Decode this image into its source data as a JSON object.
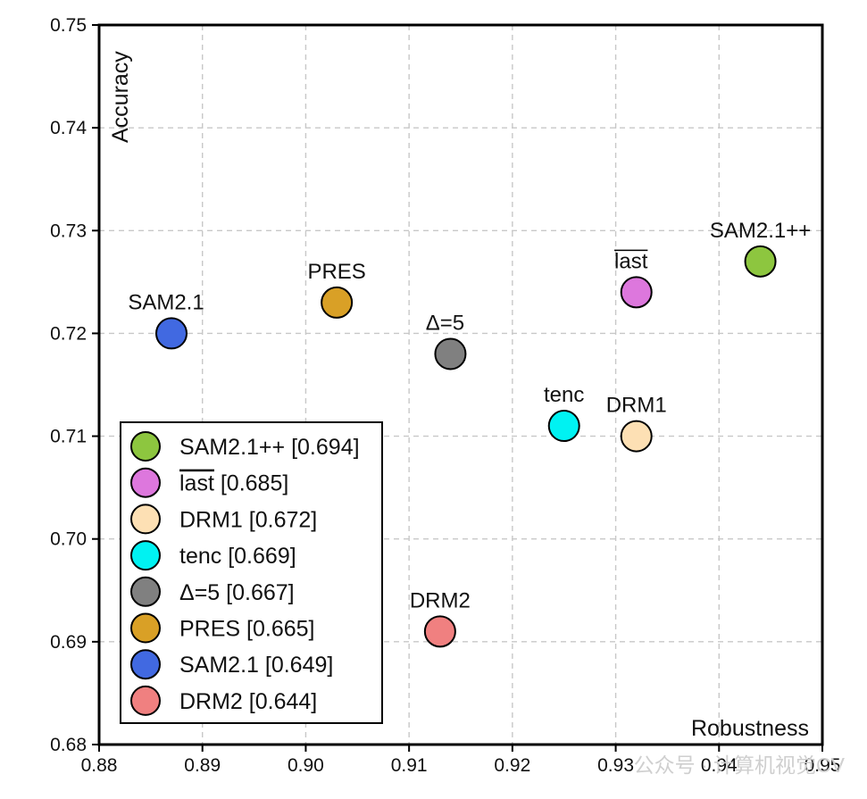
{
  "chart_data": {
    "type": "scatter",
    "xlabel": "Robustness",
    "ylabel": "Accuracy",
    "xlim": [
      0.88,
      0.95
    ],
    "ylim": [
      0.68,
      0.75
    ],
    "xticks": [
      "0.88",
      "0.89",
      "0.90",
      "0.91",
      "0.92",
      "0.93",
      "0.94",
      "0.95"
    ],
    "yticks": [
      "0.68",
      "0.69",
      "0.70",
      "0.71",
      "0.72",
      "0.73",
      "0.74",
      "0.75"
    ],
    "grid": true,
    "legend_position": "bottom-left",
    "points": [
      {
        "name": "SAM2.1++",
        "x": 0.944,
        "y": 0.727,
        "score": "0.694",
        "color": "#8dc63f",
        "label_pos": "above"
      },
      {
        "name": "last",
        "x": 0.932,
        "y": 0.724,
        "score": "0.685",
        "color": "#dd77dd",
        "overline": true,
        "label_pos": "above-left"
      },
      {
        "name": "DRM1",
        "x": 0.932,
        "y": 0.71,
        "score": "0.672",
        "color": "#fde0b4",
        "label_pos": "above"
      },
      {
        "name": "tenc",
        "x": 0.925,
        "y": 0.711,
        "score": "0.669",
        "color": "#00f2f2",
        "label_pos": "above"
      },
      {
        "name": "Δ=5",
        "x": 0.914,
        "y": 0.718,
        "score": "0.667",
        "color": "#808080",
        "label_pos": "above-left"
      },
      {
        "name": "PRES",
        "x": 0.903,
        "y": 0.723,
        "score": "0.665",
        "color": "#d9a026",
        "label_pos": "above"
      },
      {
        "name": "SAM2.1",
        "x": 0.887,
        "y": 0.72,
        "score": "0.649",
        "color": "#4169e1",
        "label_pos": "above-left"
      },
      {
        "name": "DRM2",
        "x": 0.913,
        "y": 0.691,
        "score": "0.644",
        "color": "#f08080",
        "label_pos": "above"
      }
    ]
  },
  "watermark": "公众号 · 计算机视觉CV"
}
